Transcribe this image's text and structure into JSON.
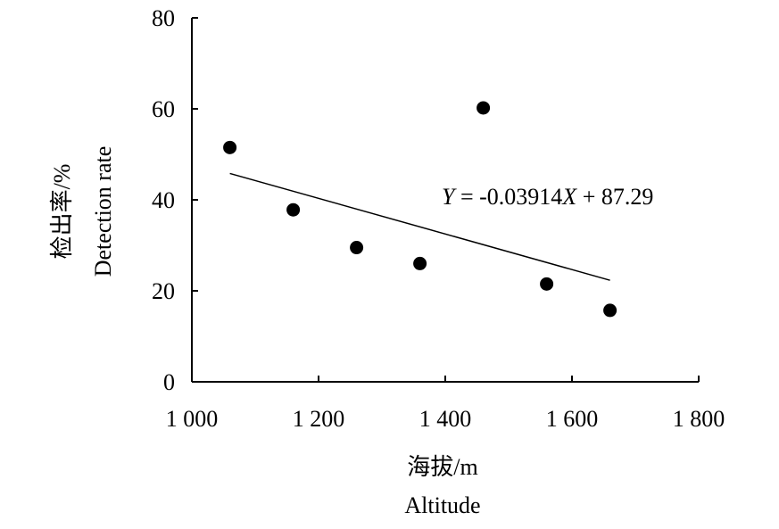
{
  "chart_data": {
    "type": "scatter",
    "x": [
      1060,
      1160,
      1260,
      1360,
      1460,
      1560,
      1660
    ],
    "y": [
      51.5,
      37.8,
      29.5,
      26.0,
      60.2,
      21.5,
      15.7
    ],
    "trendline": {
      "slope": -0.03914,
      "intercept": 87.29,
      "x_range": [
        1060,
        1660
      ]
    },
    "equation": {
      "y_var": "Y",
      "middle": " = -0.03914",
      "x_var": "X",
      "tail": " + 87.29"
    },
    "xlim": [
      1000,
      1800
    ],
    "ylim": [
      0,
      80
    ],
    "xticks": [
      1000,
      1200,
      1400,
      1600,
      1800
    ],
    "xtick_labels": [
      "1 000",
      "1 200",
      "1 400",
      "1 600",
      "1 800"
    ],
    "yticks": [
      0,
      20,
      40,
      60,
      80
    ],
    "ytick_labels": [
      "0",
      "20",
      "40",
      "60",
      "80"
    ],
    "xlabel": [
      "海拔/m",
      "Altitude"
    ],
    "ylabel": [
      "检出率/%",
      "Detection rate"
    ],
    "grid": false,
    "colors": {
      "points": "#000000",
      "line": "#000000",
      "axes": "#000000"
    }
  }
}
